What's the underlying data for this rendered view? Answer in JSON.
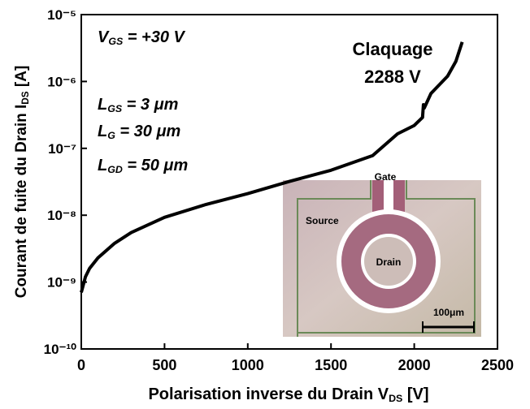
{
  "chart_data": {
    "type": "line",
    "xlabel": [
      "Polarisation inverse du Drain V",
      "DS",
      " [V]"
    ],
    "ylabel": [
      "Courant de fuite du Drain I",
      "DS",
      " [A]"
    ],
    "x": [
      0,
      25,
      50,
      100,
      200,
      300,
      500,
      750,
      1000,
      1250,
      1500,
      1750,
      1900,
      2000,
      2050,
      2055,
      2060,
      2100,
      2200,
      2250,
      2288
    ],
    "values": [
      7e-10,
      1.2e-09,
      1.6e-09,
      2.3e-09,
      3.8e-09,
      5.5e-09,
      9.3e-09,
      1.45e-08,
      2.1e-08,
      3.2e-08,
      4.7e-08,
      7.8e-08,
      1.65e-07,
      2.2e-07,
      2.9e-07,
      4.5e-07,
      4e-07,
      6.6e-07,
      1.2e-06,
      2e-06,
      3.9e-06
    ],
    "color": "#000000",
    "xlim": [
      0,
      2500
    ],
    "xticks": [
      0,
      500,
      1000,
      1500,
      2000,
      2500
    ],
    "ylim": [
      1e-10,
      1e-05
    ],
    "ylog": true,
    "yticks": [
      {
        "value": 1e-10,
        "label": "10⁻¹⁰"
      },
      {
        "value": 1e-09,
        "label": "10⁻⁹"
      },
      {
        "value": 1e-08,
        "label": "10⁻⁸"
      },
      {
        "value": 1e-07,
        "label": "10⁻⁷"
      },
      {
        "value": 1e-06,
        "label": "10⁻⁶"
      },
      {
        "value": 1e-05,
        "label": "10⁻⁵"
      }
    ],
    "annotations": [
      [
        "V",
        "GS",
        " = +30 V"
      ],
      [
        "L",
        "GS",
        " = 3 μm"
      ],
      [
        "L",
        "G",
        " = 30 μm"
      ],
      [
        "L",
        "GD",
        " = 50 μm"
      ]
    ],
    "breakdown": [
      "Claquage",
      "2288 V"
    ],
    "inset_labels": [
      "Gate",
      "Source",
      "Drain",
      "100μm"
    ]
  }
}
